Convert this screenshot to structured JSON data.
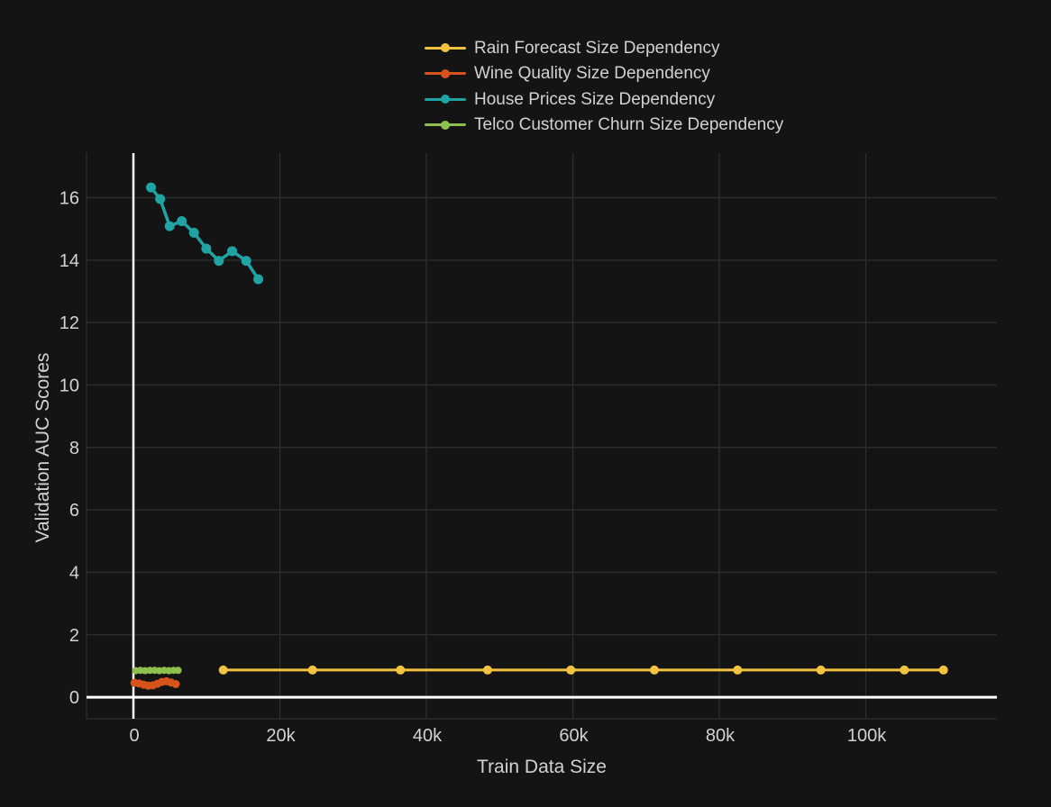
{
  "chart_data": {
    "type": "line",
    "xlabel": "Train Data Size",
    "ylabel": "Validation AUC Scores",
    "xlim": [
      -6400,
      117900
    ],
    "ylim": [
      -0.69,
      17.43
    ],
    "grid": true,
    "legend_position": "top-center-inside",
    "background_color": "#141414",
    "grid_color": "#2E2E2E",
    "axis_border_color": "#2E2E2E",
    "zeroline_color": "#FFFFFF",
    "text_color": "#D2D2D2",
    "x_ticks": [
      {
        "value": 0,
        "label": "0"
      },
      {
        "value": 20000,
        "label": "20k"
      },
      {
        "value": 40000,
        "label": "40k"
      },
      {
        "value": 60000,
        "label": "60k"
      },
      {
        "value": 80000,
        "label": "80k"
      },
      {
        "value": 100000,
        "label": "100k"
      }
    ],
    "y_ticks": [
      {
        "value": 0,
        "label": "0"
      },
      {
        "value": 2,
        "label": "2"
      },
      {
        "value": 4,
        "label": "4"
      },
      {
        "value": 6,
        "label": "6"
      },
      {
        "value": 8,
        "label": "8"
      },
      {
        "value": 10,
        "label": "10"
      },
      {
        "value": 12,
        "label": "12"
      },
      {
        "value": 14,
        "label": "14"
      },
      {
        "value": 16,
        "label": "16"
      }
    ],
    "series": [
      {
        "id": "rain-forecast",
        "name": "Rain Forecast Size Dependency",
        "color": "#F2C341",
        "line_width": 3,
        "marker_radius": 5,
        "x": [
          12270,
          24450,
          36460,
          48360,
          59720,
          71130,
          82490,
          93860,
          105260,
          110600
        ],
        "y": [
          0.87,
          0.87,
          0.87,
          0.87,
          0.87,
          0.87,
          0.87,
          0.87,
          0.87,
          0.87
        ]
      },
      {
        "id": "wine-quality",
        "name": "Wine Quality Size Dependency",
        "color": "#D6531D",
        "line_width": 3,
        "marker_radius": 4.5,
        "x": [
          150,
          780,
          1400,
          2030,
          2650,
          3280,
          3900,
          4530,
          5150,
          5780
        ],
        "y": [
          0.46,
          0.44,
          0.4,
          0.37,
          0.38,
          0.43,
          0.49,
          0.51,
          0.47,
          0.42
        ]
      },
      {
        "id": "house-prices",
        "name": "House Prices Size Dependency",
        "color": "#1FA3A3",
        "line_width": 3.5,
        "marker_radius": 5.5,
        "x": [
          2400,
          3650,
          4950,
          6600,
          8270,
          9950,
          11670,
          13480,
          15400,
          17050
        ],
        "y": [
          16.33,
          15.96,
          15.09,
          15.25,
          14.88,
          14.37,
          13.98,
          14.29,
          13.98,
          13.39
        ]
      },
      {
        "id": "telco-churn",
        "name": "Telco Customer Churn Size Dependency",
        "color": "#8DC04D",
        "line_width": 3,
        "marker_radius": 4,
        "x": [
          300,
          950,
          1600,
          2250,
          2900,
          3550,
          4200,
          4850,
          5500,
          6100
        ],
        "y": [
          0.85,
          0.86,
          0.85,
          0.86,
          0.86,
          0.85,
          0.86,
          0.85,
          0.86,
          0.86
        ]
      }
    ]
  }
}
